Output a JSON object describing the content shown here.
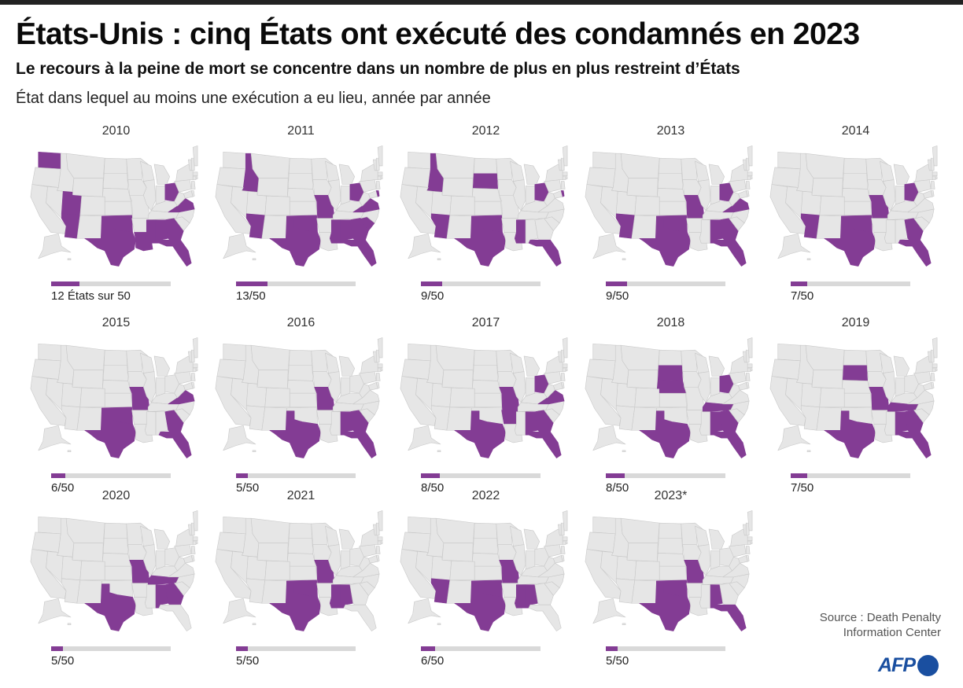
{
  "header": {
    "title": "États-Unis : cinq États ont exécuté des condamnés en 2023",
    "subtitle": "Le recours à la peine de mort se concentre dans un nombre de plus en plus restreint d’États",
    "description": "État dans lequel au moins une exécution a eu lieu, année par année"
  },
  "footer": {
    "source_line1": "Source : Death Penalty",
    "source_line2": "Information Center",
    "logo": "AFP"
  },
  "colors": {
    "highlight": "#833c94",
    "base": "#e6e6e6",
    "border": "#ffffff",
    "bar_bg": "#d9d9d9",
    "logo": "#1a4fa0"
  },
  "panels": [
    {
      "year": "2010",
      "count_label": "12 États sur 50",
      "count": 12,
      "states": [
        "WA",
        "UT",
        "AZ",
        "TX",
        "OK",
        "LA",
        "MS",
        "AL",
        "GA",
        "FL",
        "OH",
        "VA"
      ]
    },
    {
      "year": "2011",
      "count_label": "13/50",
      "count": 13,
      "states": [
        "ID",
        "AZ",
        "TX",
        "OK",
        "MO",
        "MS",
        "AL",
        "GA",
        "SC",
        "FL",
        "OH",
        "VA",
        "DE"
      ]
    },
    {
      "year": "2012",
      "count_label": "9/50",
      "count": 9,
      "states": [
        "ID",
        "SD",
        "AZ",
        "TX",
        "OK",
        "MS",
        "FL",
        "OH",
        "DE"
      ]
    },
    {
      "year": "2013",
      "count_label": "9/50",
      "count": 9,
      "states": [
        "AZ",
        "TX",
        "OK",
        "MO",
        "AL",
        "GA",
        "FL",
        "OH",
        "VA"
      ]
    },
    {
      "year": "2014",
      "count_label": "7/50",
      "count": 7,
      "states": [
        "AZ",
        "TX",
        "OK",
        "MO",
        "GA",
        "FL",
        "OH"
      ]
    },
    {
      "year": "2015",
      "count_label": "6/50",
      "count": 6,
      "states": [
        "TX",
        "OK",
        "MO",
        "GA",
        "FL",
        "VA"
      ]
    },
    {
      "year": "2016",
      "count_label": "5/50",
      "count": 5,
      "states": [
        "TX",
        "MO",
        "AL",
        "GA",
        "FL"
      ]
    },
    {
      "year": "2017",
      "count_label": "8/50",
      "count": 8,
      "states": [
        "TX",
        "MO",
        "AR",
        "AL",
        "GA",
        "FL",
        "OH",
        "VA"
      ]
    },
    {
      "year": "2018",
      "count_label": "8/50",
      "count": 8,
      "states": [
        "SD",
        "NE",
        "TX",
        "TN",
        "AL",
        "GA",
        "FL",
        "OH"
      ]
    },
    {
      "year": "2019",
      "count_label": "7/50",
      "count": 7,
      "states": [
        "SD",
        "TX",
        "MO",
        "TN",
        "AL",
        "GA",
        "FL"
      ]
    },
    {
      "year": "2020",
      "count_label": "5/50",
      "count": 5,
      "states": [
        "TX",
        "MO",
        "TN",
        "AL",
        "GA"
      ]
    },
    {
      "year": "2021",
      "count_label": "5/50",
      "count": 5,
      "states": [
        "TX",
        "OK",
        "MO",
        "MS",
        "AL"
      ]
    },
    {
      "year": "2022",
      "count_label": "6/50",
      "count": 6,
      "states": [
        "AZ",
        "TX",
        "OK",
        "MO",
        "MS",
        "AL"
      ]
    },
    {
      "year": "2023*",
      "count_label": "5/50",
      "count": 5,
      "states": [
        "TX",
        "OK",
        "MO",
        "AL",
        "FL"
      ]
    }
  ],
  "chart_data": {
    "type": "choropleth-small-multiples",
    "title": "États-Unis : cinq États ont exécuté des condamnés en 2023",
    "subtitle": "Le recours à la peine de mort se concentre dans un nombre de plus en plus restreint d’États",
    "description": "État dans lequel au moins une exécution a eu lieu, année par année",
    "categories": [
      "2010",
      "2011",
      "2012",
      "2013",
      "2014",
      "2015",
      "2016",
      "2017",
      "2018",
      "2019",
      "2020",
      "2021",
      "2022",
      "2023*"
    ],
    "values": [
      12,
      13,
      9,
      9,
      7,
      6,
      5,
      8,
      8,
      7,
      5,
      5,
      6,
      5
    ],
    "total_states": 50,
    "series": [
      {
        "name": "États avec au moins une exécution",
        "values": [
          12,
          13,
          9,
          9,
          7,
          6,
          5,
          8,
          8,
          7,
          5,
          5,
          6,
          5
        ]
      }
    ],
    "states_by_year": {
      "2010": [
        "WA",
        "UT",
        "AZ",
        "TX",
        "OK",
        "LA",
        "MS",
        "AL",
        "GA",
        "FL",
        "OH",
        "VA"
      ],
      "2011": [
        "ID",
        "AZ",
        "TX",
        "OK",
        "MO",
        "MS",
        "AL",
        "GA",
        "SC",
        "FL",
        "OH",
        "VA",
        "DE"
      ],
      "2012": [
        "ID",
        "SD",
        "AZ",
        "TX",
        "OK",
        "MS",
        "FL",
        "OH",
        "DE"
      ],
      "2013": [
        "AZ",
        "TX",
        "OK",
        "MO",
        "AL",
        "GA",
        "FL",
        "OH",
        "VA"
      ],
      "2014": [
        "AZ",
        "TX",
        "OK",
        "MO",
        "GA",
        "FL",
        "OH"
      ],
      "2015": [
        "TX",
        "OK",
        "MO",
        "GA",
        "FL",
        "VA"
      ],
      "2016": [
        "TX",
        "MO",
        "AL",
        "GA",
        "FL"
      ],
      "2017": [
        "TX",
        "MO",
        "AR",
        "AL",
        "GA",
        "FL",
        "OH",
        "VA"
      ],
      "2018": [
        "SD",
        "NE",
        "TX",
        "TN",
        "AL",
        "GA",
        "FL",
        "OH"
      ],
      "2019": [
        "SD",
        "TX",
        "MO",
        "TN",
        "AL",
        "GA",
        "FL"
      ],
      "2020": [
        "TX",
        "MO",
        "TN",
        "AL",
        "GA"
      ],
      "2021": [
        "TX",
        "OK",
        "MO",
        "MS",
        "AL"
      ],
      "2022": [
        "AZ",
        "TX",
        "OK",
        "MO",
        "MS",
        "AL"
      ],
      "2023*": [
        "TX",
        "OK",
        "MO",
        "AL",
        "FL"
      ]
    },
    "source": "Source : Death Penalty Information Center"
  }
}
